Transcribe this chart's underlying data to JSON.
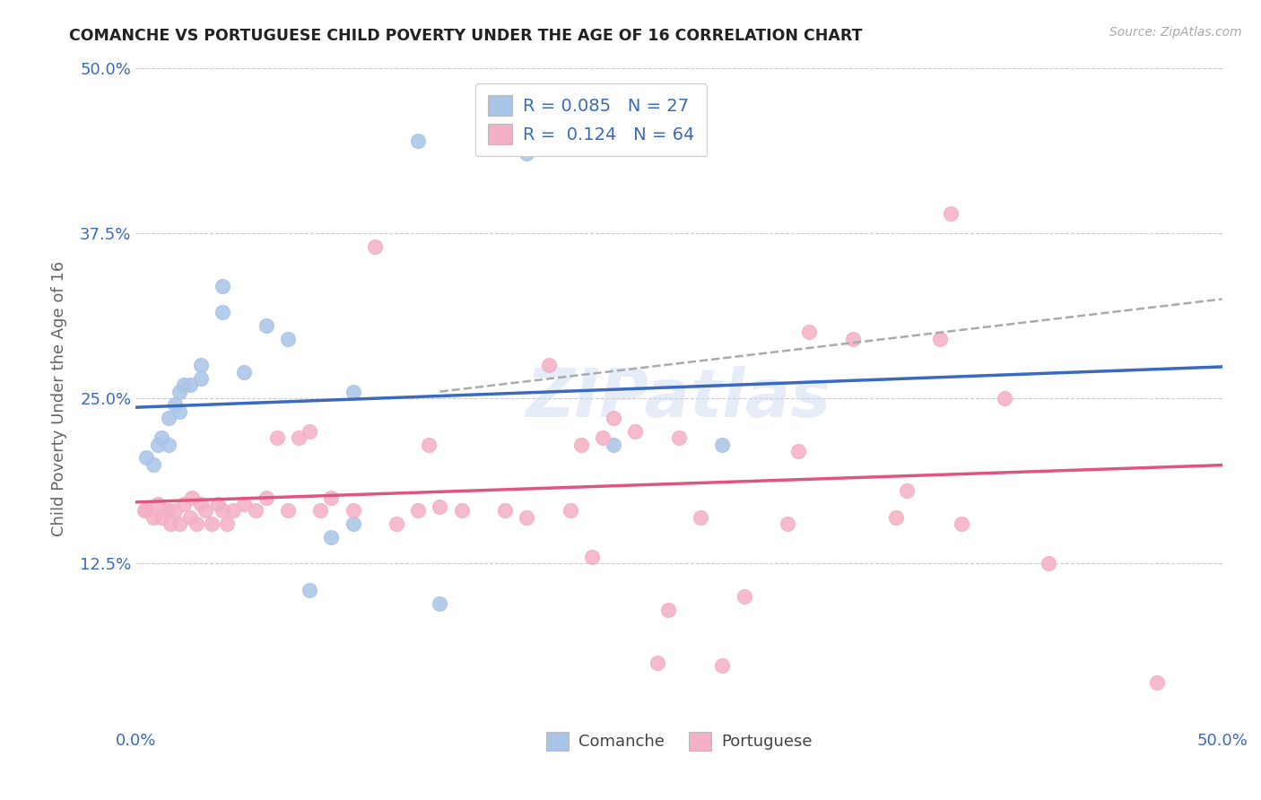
{
  "title": "COMANCHE VS PORTUGUESE CHILD POVERTY UNDER THE AGE OF 16 CORRELATION CHART",
  "source": "Source: ZipAtlas.com",
  "ylabel": "Child Poverty Under the Age of 16",
  "xlim": [
    0.0,
    0.5
  ],
  "ylim": [
    0.0,
    0.5
  ],
  "xticks": [
    0.0,
    0.125,
    0.25,
    0.375,
    0.5
  ],
  "yticks": [
    0.0,
    0.125,
    0.25,
    0.375,
    0.5
  ],
  "xticklabels": [
    "0.0%",
    "",
    "",
    "",
    "50.0%"
  ],
  "yticklabels": [
    "",
    "12.5%",
    "25.0%",
    "37.5%",
    "50.0%"
  ],
  "comanche_R": "0.085",
  "comanche_N": "27",
  "portuguese_R": "0.124",
  "portuguese_N": "64",
  "comanche_color": "#aac4e8",
  "comanche_line_color": "#3a6abf",
  "portuguese_color": "#f4b0c4",
  "portuguese_line_color": "#e05580",
  "portuguese_dash_color": "#bbbbbb",
  "watermark": "ZIPatlas",
  "comanche_x": [
    0.005,
    0.008,
    0.01,
    0.012,
    0.015,
    0.015,
    0.018,
    0.02,
    0.02,
    0.022,
    0.025,
    0.03,
    0.03,
    0.04,
    0.04,
    0.05,
    0.06,
    0.07,
    0.08,
    0.09,
    0.1,
    0.1,
    0.13,
    0.14,
    0.18,
    0.22,
    0.27
  ],
  "comanche_y": [
    0.205,
    0.2,
    0.215,
    0.22,
    0.215,
    0.235,
    0.245,
    0.24,
    0.255,
    0.26,
    0.26,
    0.265,
    0.275,
    0.315,
    0.335,
    0.27,
    0.305,
    0.295,
    0.105,
    0.145,
    0.155,
    0.255,
    0.445,
    0.095,
    0.435,
    0.215,
    0.215
  ],
  "portuguese_x": [
    0.004,
    0.005,
    0.008,
    0.01,
    0.012,
    0.014,
    0.015,
    0.016,
    0.018,
    0.02,
    0.022,
    0.025,
    0.026,
    0.028,
    0.03,
    0.032,
    0.035,
    0.038,
    0.04,
    0.042,
    0.045,
    0.05,
    0.055,
    0.06,
    0.065,
    0.07,
    0.075,
    0.08,
    0.085,
    0.09,
    0.1,
    0.11,
    0.12,
    0.13,
    0.135,
    0.14,
    0.15,
    0.17,
    0.18,
    0.19,
    0.2,
    0.205,
    0.21,
    0.215,
    0.22,
    0.23,
    0.24,
    0.245,
    0.25,
    0.26,
    0.27,
    0.28,
    0.3,
    0.305,
    0.31,
    0.33,
    0.35,
    0.355,
    0.37,
    0.375,
    0.38,
    0.4,
    0.42,
    0.47
  ],
  "portuguese_y": [
    0.165,
    0.165,
    0.16,
    0.17,
    0.16,
    0.165,
    0.165,
    0.155,
    0.165,
    0.155,
    0.17,
    0.16,
    0.175,
    0.155,
    0.17,
    0.165,
    0.155,
    0.17,
    0.165,
    0.155,
    0.165,
    0.17,
    0.165,
    0.175,
    0.22,
    0.165,
    0.22,
    0.225,
    0.165,
    0.175,
    0.165,
    0.365,
    0.155,
    0.165,
    0.215,
    0.168,
    0.165,
    0.165,
    0.16,
    0.275,
    0.165,
    0.215,
    0.13,
    0.22,
    0.235,
    0.225,
    0.05,
    0.09,
    0.22,
    0.16,
    0.048,
    0.1,
    0.155,
    0.21,
    0.3,
    0.295,
    0.16,
    0.18,
    0.295,
    0.39,
    0.155,
    0.25,
    0.125,
    0.035
  ]
}
